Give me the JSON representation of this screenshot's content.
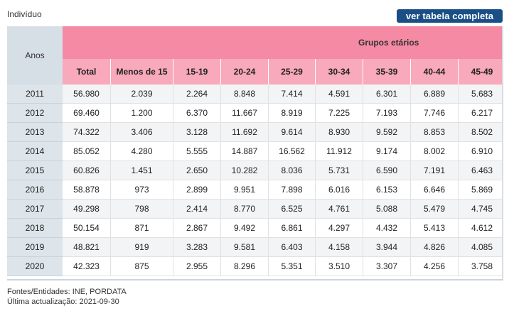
{
  "unit_label": "Indivíduo",
  "full_table_button": "ver tabela completa",
  "table": {
    "year_header": "Anos",
    "group_header": "Grupos etários",
    "columns": [
      "Total",
      "Menos de 15",
      "15-19",
      "20-24",
      "25-29",
      "30-34",
      "35-39",
      "40-44",
      "45-49"
    ],
    "rows": [
      {
        "year": "2011",
        "values": [
          "56.980",
          "2.039",
          "2.264",
          "8.848",
          "7.414",
          "4.591",
          "6.301",
          "6.889",
          "5.683"
        ]
      },
      {
        "year": "2012",
        "values": [
          "69.460",
          "1.200",
          "6.370",
          "11.667",
          "8.919",
          "7.225",
          "7.193",
          "7.746",
          "6.217"
        ]
      },
      {
        "year": "2013",
        "values": [
          "74.322",
          "3.406",
          "3.128",
          "11.692",
          "9.614",
          "8.930",
          "9.592",
          "8.853",
          "8.502"
        ]
      },
      {
        "year": "2014",
        "values": [
          "85.052",
          "4.280",
          "5.555",
          "14.887",
          "16.562",
          "11.912",
          "9.174",
          "8.002",
          "6.910"
        ]
      },
      {
        "year": "2015",
        "values": [
          "60.826",
          "1.451",
          "2.650",
          "10.282",
          "8.036",
          "5.731",
          "6.590",
          "7.191",
          "6.463"
        ]
      },
      {
        "year": "2016",
        "values": [
          "58.878",
          "973",
          "2.899",
          "9.951",
          "7.898",
          "6.016",
          "6.153",
          "6.646",
          "5.869"
        ]
      },
      {
        "year": "2017",
        "values": [
          "49.298",
          "798",
          "2.414",
          "8.770",
          "6.525",
          "4.761",
          "5.088",
          "5.479",
          "4.745"
        ]
      },
      {
        "year": "2018",
        "values": [
          "50.154",
          "871",
          "2.867",
          "9.492",
          "6.861",
          "4.297",
          "4.432",
          "5.413",
          "4.612"
        ]
      },
      {
        "year": "2019",
        "values": [
          "48.821",
          "919",
          "3.283",
          "9.581",
          "6.403",
          "4.158",
          "3.944",
          "4.826",
          "4.085"
        ]
      },
      {
        "year": "2020",
        "values": [
          "42.323",
          "875",
          "2.955",
          "8.296",
          "5.351",
          "3.510",
          "3.307",
          "4.256",
          "3.758"
        ]
      }
    ]
  },
  "footer": {
    "sources": "Fontes/Entidades: INE, PORDATA",
    "updated": "Última actualização: 2021-09-30"
  },
  "colors": {
    "brand_button": "#1a4f85",
    "group_header": "#f48aa3",
    "sub_header": "#f8a9bb",
    "year_column": "#dde4ea"
  }
}
